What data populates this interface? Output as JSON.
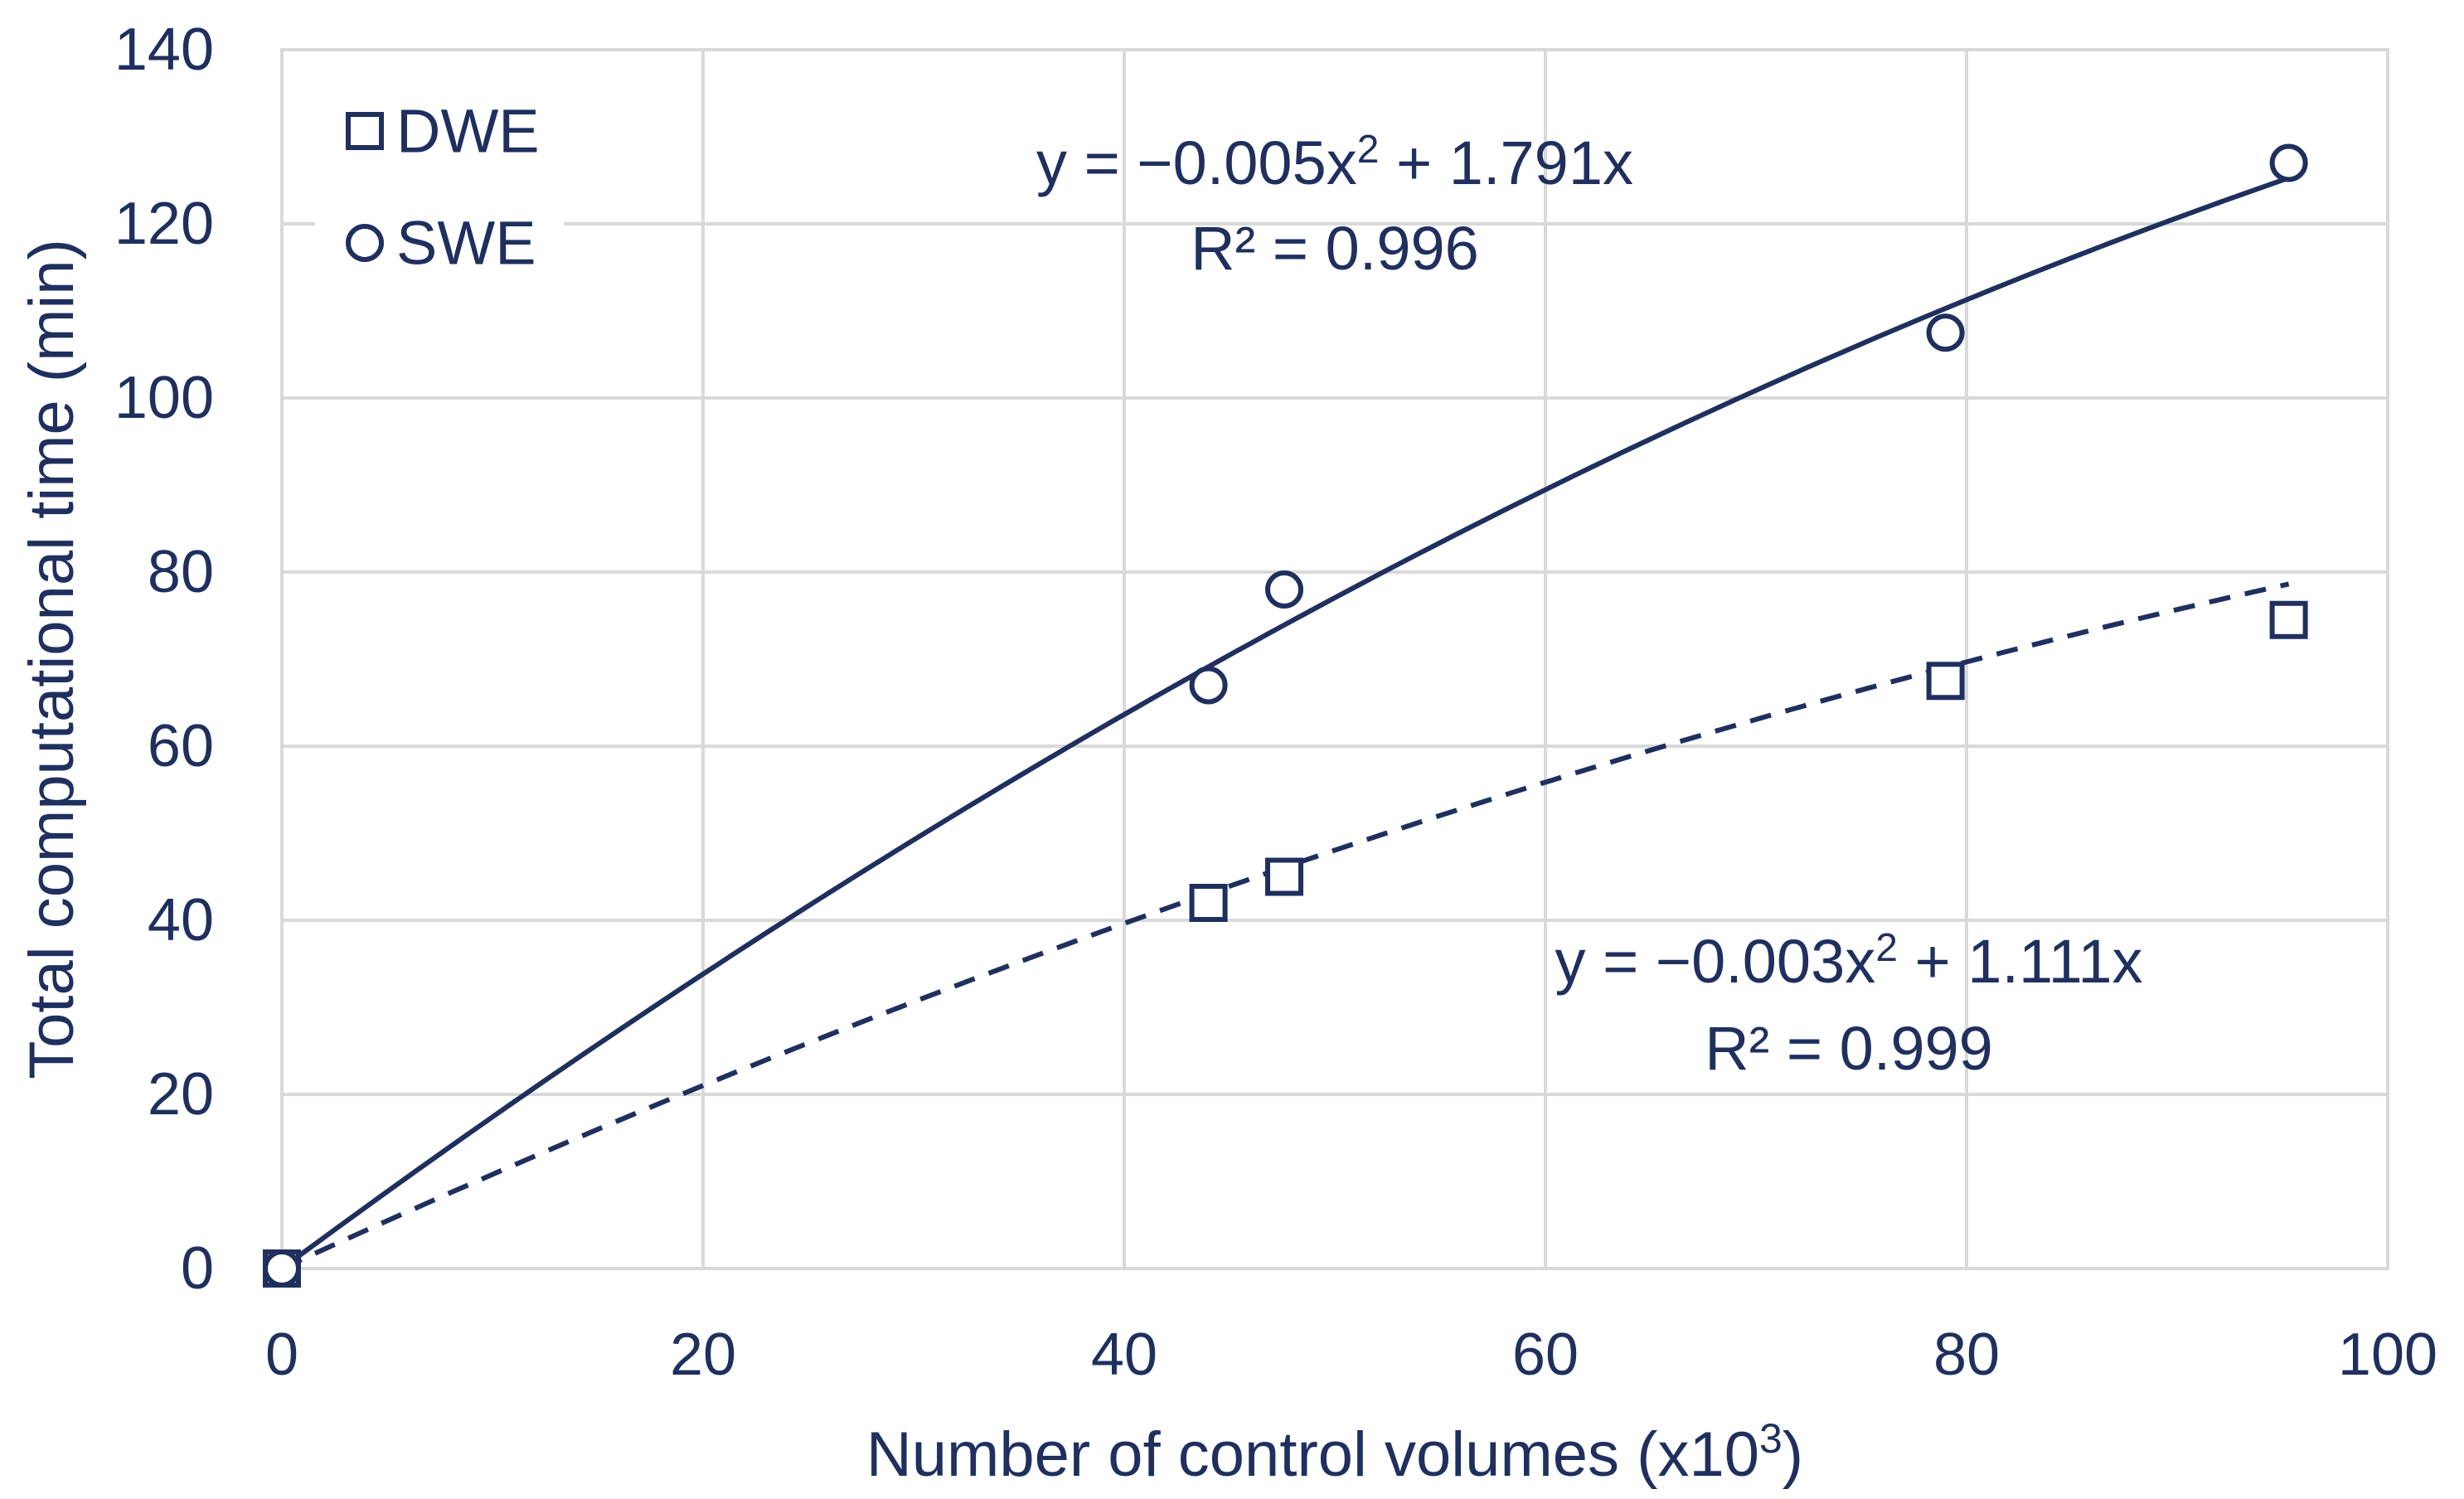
{
  "chart_data": {
    "type": "scatter",
    "xlabel": "Number of control volumes (x10",
    "xlabel_sup": "3",
    "xlabel_end": ")",
    "ylabel": "Total computational time (min)",
    "xlim": [
      0,
      100
    ],
    "ylim": [
      0,
      140
    ],
    "x_ticks": [
      0,
      20,
      40,
      60,
      80,
      100
    ],
    "y_ticks": [
      0,
      20,
      40,
      60,
      80,
      100,
      120,
      140
    ],
    "grid": true,
    "legend_position": "top-left",
    "colors": {
      "ink": "#1f2f5e",
      "grid": "#d9d9d9"
    },
    "series": [
      {
        "name": "DWE",
        "marker": "square",
        "points": [
          {
            "x": 0,
            "y": 0
          },
          {
            "x": 44,
            "y": 42
          },
          {
            "x": 47.6,
            "y": 45
          },
          {
            "x": 79,
            "y": 67.5
          },
          {
            "x": 95.3,
            "y": 74.5
          }
        ],
        "trendline": {
          "style": "dashed",
          "a": -0.003,
          "b": 1.111,
          "x_range": [
            0,
            95.3
          ],
          "equation_parts": [
            "y = −0.003x",
            "2",
            " + 1.111x"
          ],
          "r2": "R² = 0.999"
        }
      },
      {
        "name": "SWE",
        "marker": "circle",
        "points": [
          {
            "x": 0,
            "y": 0
          },
          {
            "x": 44,
            "y": 67
          },
          {
            "x": 47.6,
            "y": 78
          },
          {
            "x": 79,
            "y": 107.5
          },
          {
            "x": 95.3,
            "y": 127
          }
        ],
        "trendline": {
          "style": "solid",
          "a": -0.005,
          "b": 1.791,
          "x_range": [
            0,
            95.3
          ],
          "equation_parts": [
            "y = −0.005x",
            "2",
            " + 1.791x"
          ],
          "r2": "R² = 0.996"
        }
      }
    ]
  }
}
